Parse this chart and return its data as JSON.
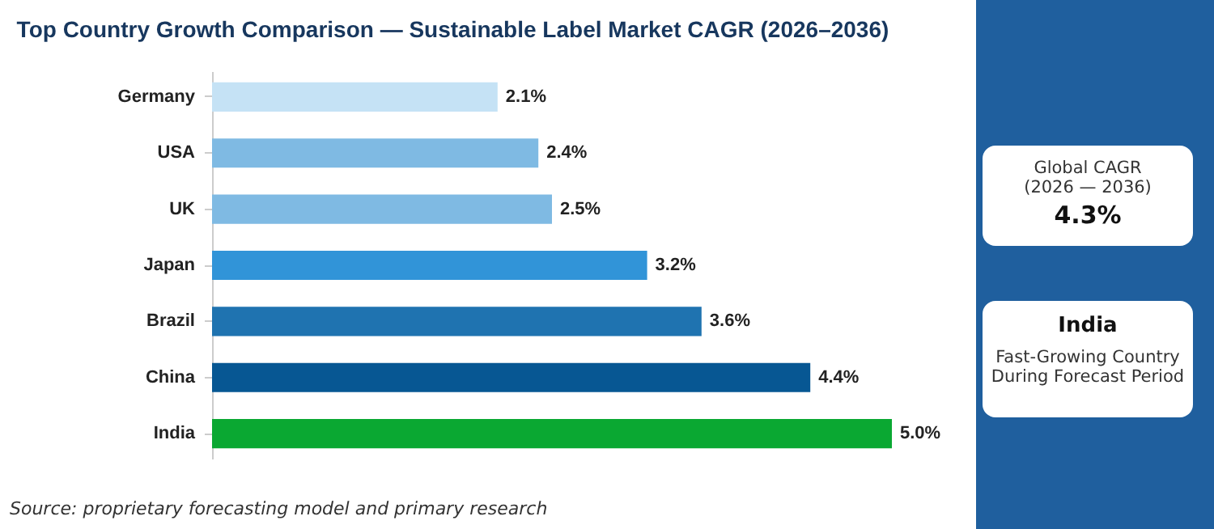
{
  "chart_data": {
    "type": "bar",
    "orientation": "horizontal",
    "title": "Top Country Growth Comparison — Sustainable Label Market CAGR (2026–2036)",
    "categories": [
      "Germany",
      "USA",
      "UK",
      "Japan",
      "Brazil",
      "China",
      "India"
    ],
    "values": [
      2.1,
      2.4,
      2.5,
      3.2,
      3.6,
      4.4,
      5.0
    ],
    "colors": [
      "#c5e2f5",
      "#7fbae3",
      "#7fbae3",
      "#3194d8",
      "#1f73b0",
      "#075793",
      "#0aa832"
    ],
    "value_labels": [
      "2.1%",
      "2.4%",
      "2.5%",
      "3.2%",
      "3.6%",
      "4.4%",
      "5.0%"
    ],
    "annotations": [
      "Source: proprietary forecasting model and primary research",
      "Global CAGR",
      "(2026 — 2036)",
      "4.3%",
      "India",
      "Fast-Growing Country During Forecast Period"
    ]
  }
}
